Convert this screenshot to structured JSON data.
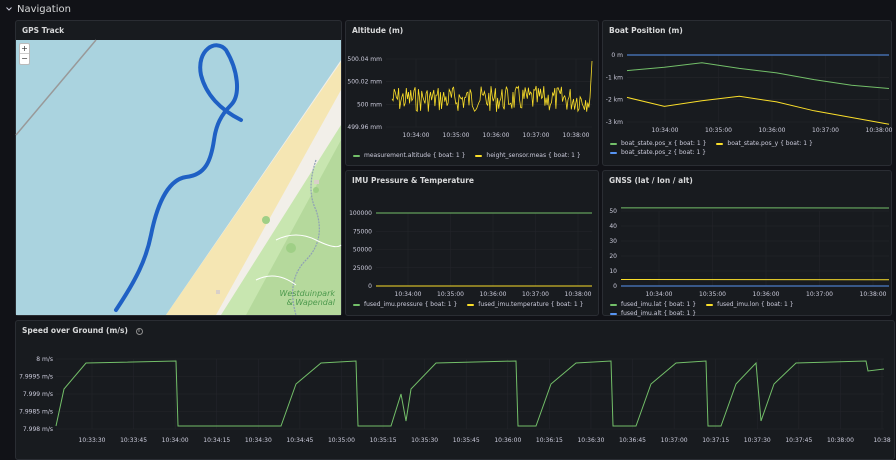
{
  "row": {
    "title": "Navigation"
  },
  "panels": {
    "gps": {
      "title": "GPS Track",
      "zoom_in": "+",
      "zoom_out": "−",
      "map_label_1": "Westduinpark",
      "map_label_2": "& Wapendal"
    },
    "altitude": {
      "title": "Altitude (m)",
      "legend": [
        {
          "label": "measurement.altitude { boat: 1 }",
          "color": "#73bf69"
        },
        {
          "label": "height_sensor.meas { boat: 1 }",
          "color": "#fade2a"
        }
      ]
    },
    "boat_position": {
      "title": "Boat Position (m)",
      "legend": [
        {
          "label": "boat_state.pos_x { boat: 1 }",
          "color": "#73bf69"
        },
        {
          "label": "boat_state.pos_y { boat: 1 }",
          "color": "#fade2a"
        },
        {
          "label": "boat_state.pos_z { boat: 1 }",
          "color": "#5794f2"
        }
      ]
    },
    "imu": {
      "title": "IMU Pressure & Temperature",
      "legend": [
        {
          "label": "fused_imu.pressure { boat: 1 }",
          "color": "#73bf69"
        },
        {
          "label": "fused_imu.temperature { boat: 1 }",
          "color": "#fade2a"
        }
      ]
    },
    "gnss": {
      "title": "GNSS (lat / lon / alt)",
      "legend": [
        {
          "label": "fused_imu.lat { boat: 1 }",
          "color": "#73bf69"
        },
        {
          "label": "fused_imu.lon { boat: 1 }",
          "color": "#fade2a"
        },
        {
          "label": "fused_imu.alt { boat: 1 }",
          "color": "#5794f2"
        }
      ]
    },
    "speed": {
      "title": "Speed over Ground (m/s)",
      "info": "i"
    }
  },
  "chart_data": [
    {
      "id": "altitude",
      "type": "line",
      "title": "Altitude (m)",
      "x_ticks": [
        "10:34:00",
        "10:35:00",
        "10:36:00",
        "10:37:00",
        "10:38:00"
      ],
      "y_ticks": [
        "500.04 mm",
        "500.02 mm",
        "500 mm",
        "499.96 mm"
      ],
      "ylim": [
        499.95,
        500.05
      ],
      "series": [
        {
          "name": "height_sensor.meas { boat: 1 }",
          "color": "#fade2a",
          "shape": "noise around 500 mm, range 499.97–500.02, spike to 500.04 at end"
        }
      ]
    },
    {
      "id": "boat_position",
      "type": "line",
      "title": "Boat Position (m)",
      "x_ticks": [
        "10:34:00",
        "10:35:00",
        "10:36:00",
        "10:37:00",
        "10:38:00"
      ],
      "y_ticks": [
        "0 m",
        "-1 km",
        "-2 km",
        "-3 km"
      ],
      "series": [
        {
          "name": "boat_state.pos_x { boat: 1 }",
          "color": "#73bf69",
          "x": [
            "10:33:15",
            "10:34:00",
            "10:34:45",
            "10:35:30",
            "10:36:15",
            "10:37:00",
            "10:37:45",
            "10:38:15"
          ],
          "values": [
            -0.7,
            -0.55,
            -0.35,
            -0.6,
            -0.8,
            -1.1,
            -1.35,
            -1.5
          ]
        },
        {
          "name": "boat_state.pos_y { boat: 1 }",
          "color": "#fade2a",
          "x": [
            "10:33:15",
            "10:34:00",
            "10:34:45",
            "10:35:30",
            "10:36:15",
            "10:37:00",
            "10:37:45",
            "10:38:15"
          ],
          "values": [
            -1.9,
            -2.3,
            -2.05,
            -1.85,
            -2.1,
            -2.5,
            -2.8,
            -3.1
          ]
        },
        {
          "name": "boat_state.pos_z { boat: 1 }",
          "color": "#5794f2",
          "x": [
            "10:33:15",
            "10:38:15"
          ],
          "values": [
            0,
            0
          ]
        }
      ]
    },
    {
      "id": "imu",
      "type": "line",
      "title": "IMU Pressure & Temperature",
      "x_ticks": [
        "10:34:00",
        "10:35:00",
        "10:36:00",
        "10:37:00",
        "10:38:00"
      ],
      "y_ticks": [
        "100000",
        "75000",
        "50000",
        "25000",
        "0"
      ],
      "series": [
        {
          "name": "fused_imu.pressure { boat: 1 }",
          "color": "#73bf69",
          "values": [
            100000,
            100000
          ]
        },
        {
          "name": "fused_imu.temperature { boat: 1 }",
          "color": "#fade2a",
          "values": [
            25,
            25
          ]
        }
      ]
    },
    {
      "id": "gnss",
      "type": "line",
      "title": "GNSS (lat / lon / alt)",
      "x_ticks": [
        "10:34:00",
        "10:35:00",
        "10:36:00",
        "10:37:00",
        "10:38:00"
      ],
      "y_ticks": [
        "50",
        "40",
        "30",
        "20",
        "10",
        "0"
      ],
      "series": [
        {
          "name": "fused_imu.lat { boat: 1 }",
          "color": "#73bf69",
          "values": [
            52.1,
            52.0
          ]
        },
        {
          "name": "fused_imu.lon { boat: 1 }",
          "color": "#fade2a",
          "values": [
            4.3,
            4.2
          ]
        },
        {
          "name": "fused_imu.alt { boat: 1 }",
          "color": "#5794f2",
          "values": [
            0,
            0
          ]
        }
      ]
    },
    {
      "id": "speed",
      "type": "line",
      "title": "Speed over Ground (m/s)",
      "x_ticks": [
        "10:33:30",
        "10:33:45",
        "10:34:00",
        "10:34:15",
        "10:34:30",
        "10:34:45",
        "10:35:00",
        "10:35:15",
        "10:35:30",
        "10:35:45",
        "10:36:00",
        "10:36:15",
        "10:36:30",
        "10:36:45",
        "10:37:00",
        "10:37:15",
        "10:37:30",
        "10:37:45",
        "10:38:00",
        "10:38"
      ],
      "y_ticks": [
        "8 m/s",
        "7.9995 m/s",
        "7.999 m/s",
        "7.9985 m/s",
        "7.998 m/s"
      ],
      "ylim": [
        7.9979,
        8.0001
      ],
      "series": [
        {
          "name": "speed",
          "color": "#73bf69",
          "shape": "square-ish wave switching between ~8.0000 and ~7.9982 m/s"
        }
      ]
    }
  ]
}
